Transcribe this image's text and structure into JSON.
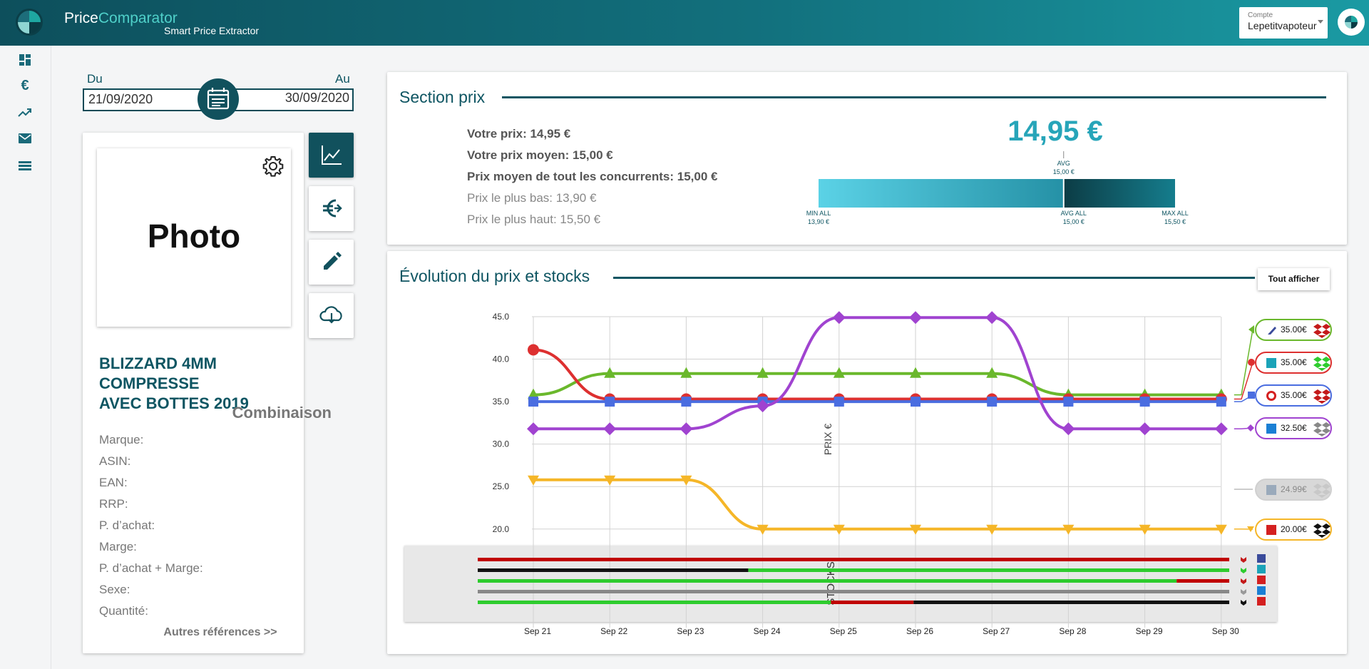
{
  "app": {
    "brand_price": "Price",
    "brand_comparator": "Comparator",
    "tagline": "Smart Price Extractor"
  },
  "account": {
    "label": "Compte",
    "value": "Lepetitvapoteur"
  },
  "nav": [
    "dashboard-icon",
    "euro-icon",
    "trending-up-icon",
    "mail-icon",
    "list-icon"
  ],
  "dates": {
    "from_label": "Du",
    "to_label": "Au",
    "from": "21/09/2020",
    "to": "30/09/2020"
  },
  "product": {
    "photo": "Photo",
    "name_line1": "BLIZZARD 4MM COMPRESSE",
    "name_line2": "AVEC BOTTES 2019",
    "type": "Combinaison",
    "attributes": [
      "Marque:",
      "ASIN:",
      "EAN:",
      "RRP:",
      "P. d’achat:",
      "Marge:",
      "P. d’achat + Marge:",
      "Sexe:",
      "Quantité:"
    ],
    "more": "Autres références >>"
  },
  "price_section": {
    "title": "Section prix",
    "lines": {
      "votre_prix": "Votre prix: 14,95 €",
      "prix_moyen": "Votre prix moyen: 15,00 €",
      "moyen_concurrents": "Prix moyen de tout les concurrents: 15,00 €",
      "plus_bas": "Prix le plus bas: 13,90 €",
      "plus_haut": "Prix le plus haut: 15,50 €"
    },
    "big_price": "14,95 €",
    "gauge": {
      "min_label": "MIN ALL",
      "min_value": "13,90 €",
      "avg_all_label": "AVG ALL",
      "avg_all_value": "15,00 €",
      "max_label": "MAX ALL",
      "max_value": "15,50 €",
      "avg_label": "AVG",
      "avg_value": "15,00 €",
      "min": 13.9,
      "max": 15.5,
      "avg": 15.0,
      "avg_all": 15.0
    }
  },
  "evolution": {
    "title": "Évolution du prix et stocks",
    "show_all": "Tout afficher"
  },
  "competitor_labels": [
    "35.00€",
    "35.00€",
    "35.00€",
    "32.50€",
    "24.99€",
    "20.00€"
  ],
  "colors": {
    "green": "#6ab82c",
    "red": "#dd3030",
    "blue": "#4a6de0",
    "purple": "#a043d0",
    "grey": "#bbbbbb",
    "yellow": "#f5b628",
    "teal": "#11515d"
  },
  "chart_data": {
    "type": "line",
    "ylabel": "PRIX €",
    "ylim": [
      20,
      45
    ],
    "yticks": [
      "45.0",
      "40.0",
      "35.0",
      "30.0",
      "25.0",
      "20.0"
    ],
    "categories": [
      "Sep 21",
      "Sep 22",
      "Sep 23",
      "Sep 24",
      "Sep 25",
      "Sep 26",
      "Sep 27",
      "Sep 28",
      "Sep 29",
      "Sep 30"
    ],
    "series": [
      {
        "color": "#6ab82c",
        "marker": "triangle-up",
        "values": [
          35.8,
          38.3,
          38.3,
          38.3,
          38.3,
          38.3,
          38.3,
          35.8,
          35.8,
          35.8
        ]
      },
      {
        "color": "#dd3030",
        "marker": "circle",
        "values": [
          41.1,
          35.3,
          35.3,
          35.3,
          35.3,
          35.3,
          35.3,
          35.3,
          35.3,
          35.3
        ]
      },
      {
        "color": "#4a6de0",
        "marker": "square",
        "values": [
          35.0,
          35.0,
          35.0,
          35.0,
          35.0,
          35.0,
          35.0,
          35.0,
          35.0,
          35.0
        ]
      },
      {
        "color": "#a043d0",
        "marker": "diamond",
        "values": [
          31.8,
          31.8,
          31.8,
          34.5,
          44.9,
          44.9,
          44.9,
          31.8,
          31.8,
          31.8
        ]
      },
      {
        "color": "#f5b628",
        "marker": "triangle-down",
        "values": [
          25.8,
          25.8,
          25.8,
          20.0,
          20.0,
          20.0,
          20.0,
          20.0,
          20.0,
          20.0
        ]
      }
    ],
    "stocks": {
      "title": "STOCKS",
      "rows": [
        [
          [
            "#c00000",
            1.0
          ]
        ],
        [
          [
            "#111111",
            0.36
          ],
          [
            "#2ecc2e",
            0.64
          ]
        ],
        [
          [
            "#2ecc2e",
            0.93
          ],
          [
            "#c00000",
            0.07
          ]
        ],
        [
          [
            "#888888",
            1.0
          ]
        ],
        [
          [
            "#2ecc2e",
            0.47
          ],
          [
            "#c00000",
            0.11
          ],
          [
            "#111111",
            0.42
          ]
        ]
      ]
    }
  }
}
